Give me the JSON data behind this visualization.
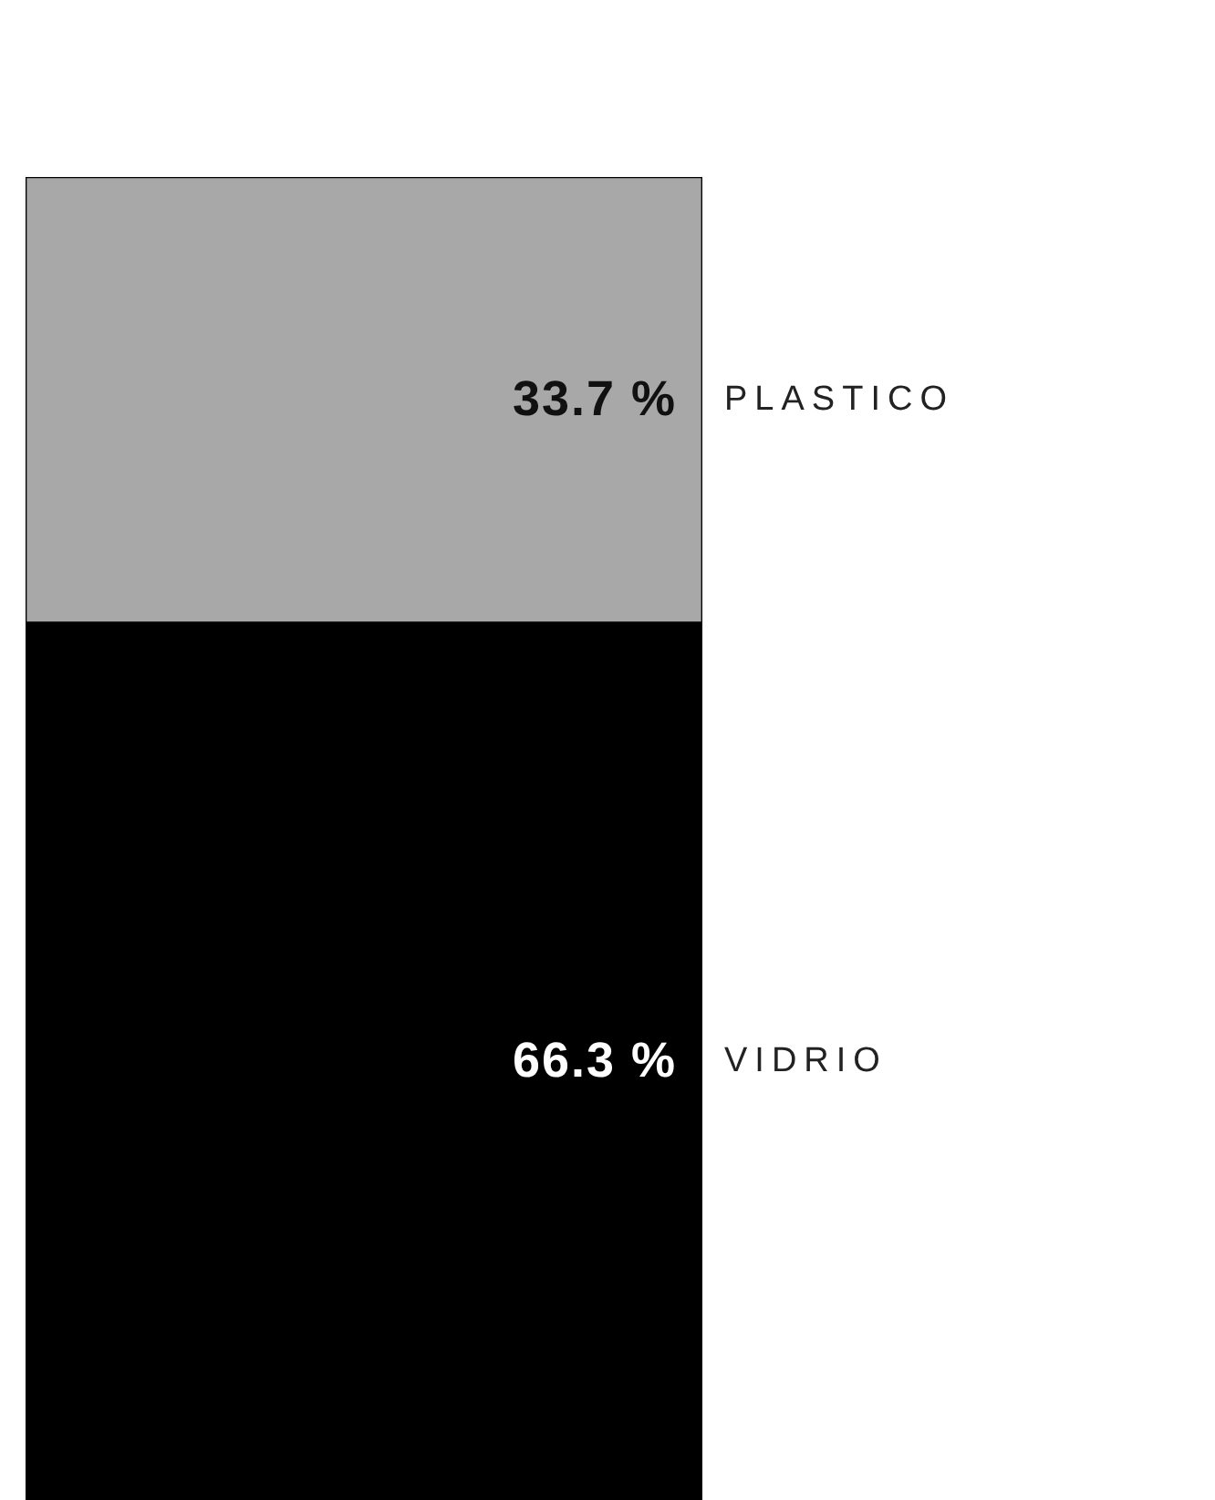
{
  "chart_data": {
    "type": "bar",
    "stacked": true,
    "categories": [
      null
    ],
    "series": [
      {
        "name": "VIDRIO",
        "color": "#000000",
        "values": [
          66.3
        ],
        "value_labels": [
          "66.3 %"
        ]
      },
      {
        "name": "PLASTICO",
        "color": "#a8a8a8",
        "values": [
          33.7
        ],
        "value_labels": [
          "33.7 %"
        ]
      }
    ]
  }
}
